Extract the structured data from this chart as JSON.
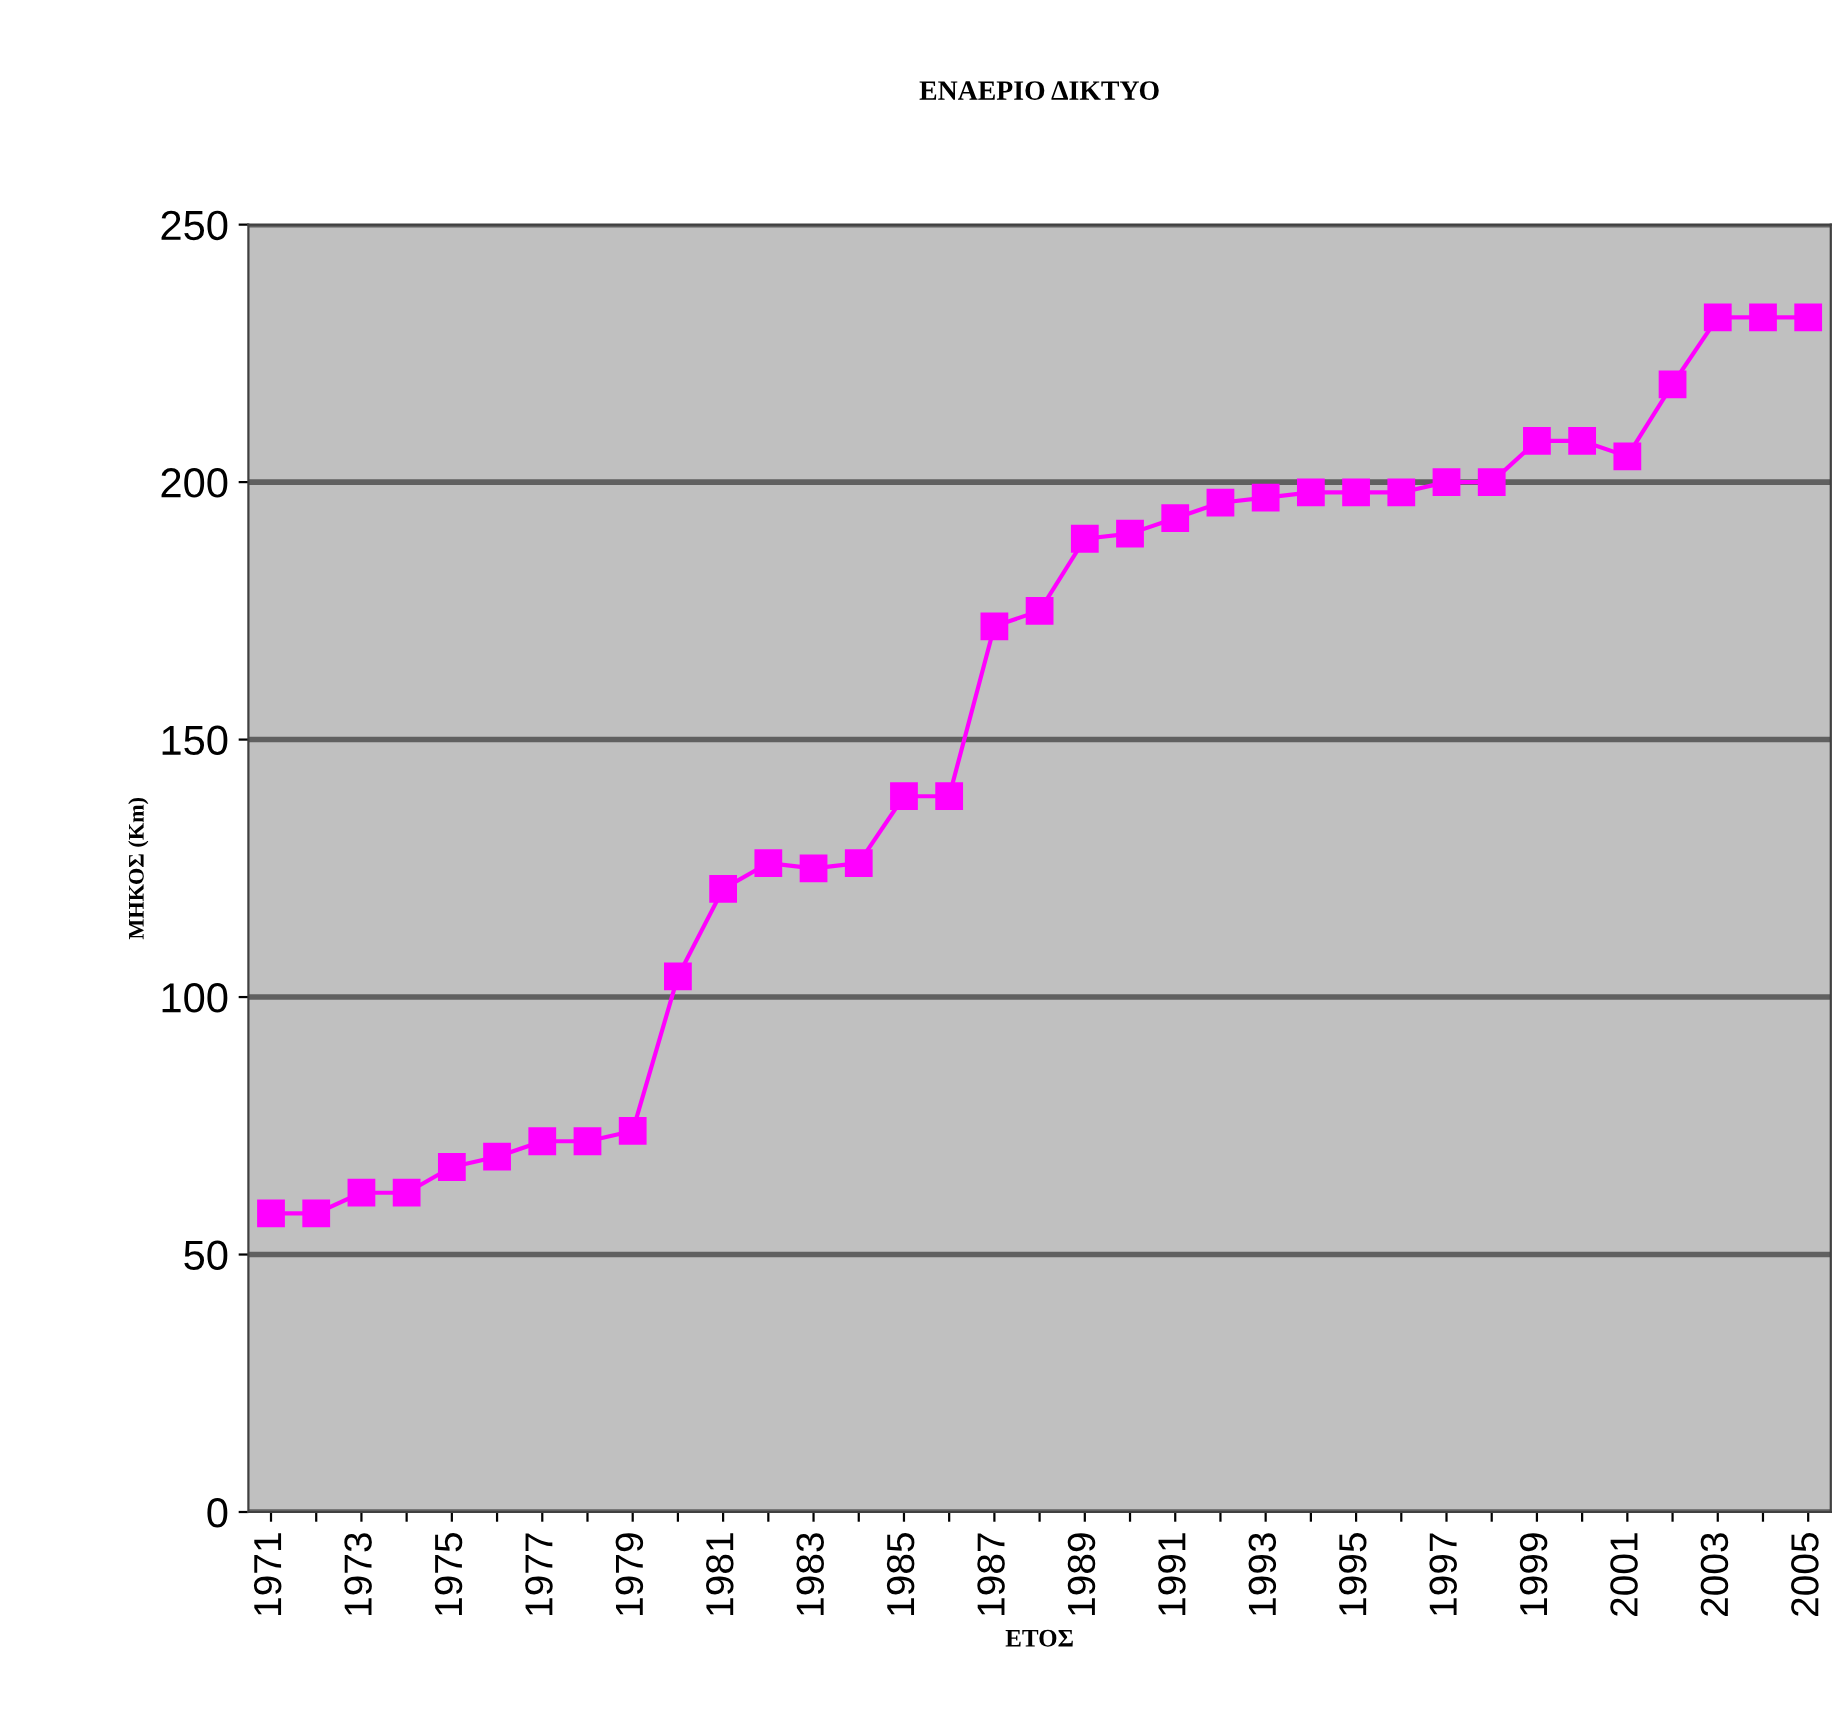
{
  "chart_data": {
    "type": "line",
    "title": "ΕΝΑΕΡΙΟ ΔΙΚΤΥΟ",
    "xlabel": "ΕΤΟΣ",
    "ylabel": "ΜΗΚΟΣ (Km)",
    "categories": [
      "1971",
      null,
      "1973",
      null,
      "1975",
      null,
      "1977",
      null,
      "1979",
      null,
      "1981",
      null,
      "1983",
      null,
      "1985",
      null,
      "1987",
      null,
      "1989",
      null,
      "1991",
      null,
      "1993",
      null,
      "1995",
      null,
      "1997",
      null,
      "1999",
      null,
      "2001",
      null,
      "2003",
      null,
      "2005"
    ],
    "series": [
      {
        "color": "#ff00ff",
        "values": [
          58,
          58,
          62,
          62,
          67,
          69,
          72,
          72,
          74,
          104,
          121,
          126,
          125,
          126,
          139,
          139,
          172,
          175,
          189,
          190,
          193,
          196,
          197,
          198,
          198,
          198,
          200,
          200,
          208,
          208,
          205,
          219,
          232,
          232,
          232
        ]
      }
    ],
    "ylim": [
      0,
      250
    ],
    "yticks": [
      0,
      50,
      100,
      150,
      200,
      250
    ],
    "grid": "y",
    "marker": "square",
    "line_style": "solid",
    "legend": false
  }
}
